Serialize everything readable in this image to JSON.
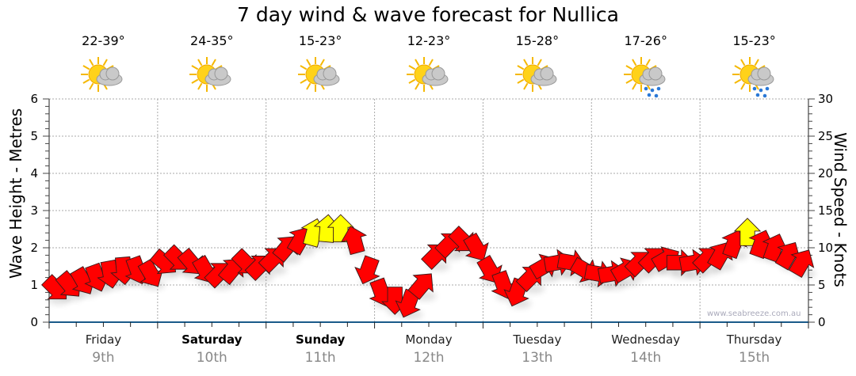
{
  "title": "7 day wind & wave forecast for Nullica",
  "days": [
    {
      "day": "Friday",
      "date": "9th",
      "temp": "22-39°",
      "icon": "sun-cloud-icon",
      "bold": false
    },
    {
      "day": "Saturday",
      "date": "10th",
      "temp": "24-35°",
      "icon": "sun-cloud-icon",
      "bold": true
    },
    {
      "day": "Sunday",
      "date": "11th",
      "temp": "15-23°",
      "icon": "sun-cloud-icon",
      "bold": true
    },
    {
      "day": "Monday",
      "date": "12th",
      "temp": "12-23°",
      "icon": "sun-cloud-icon",
      "bold": false
    },
    {
      "day": "Tuesday",
      "date": "13th",
      "temp": "15-28°",
      "icon": "sun-cloud-icon",
      "bold": false
    },
    {
      "day": "Wednesday",
      "date": "14th",
      "temp": "17-26°",
      "icon": "sun-cloud-rain-icon",
      "bold": false
    },
    {
      "day": "Thursday",
      "date": "15th",
      "temp": "15-23°",
      "icon": "sun-cloud-rain-icon",
      "bold": false
    }
  ],
  "watermark": "www.seabreeze.com.au",
  "chart_data": {
    "type": "scatter",
    "title": "7 day wind & wave forecast for Nullica",
    "ylabel_left": "Wave Height - Metres",
    "ylabel_right": "Wind Speed - Knots",
    "ylim_left": [
      0,
      6
    ],
    "ylim_right": [
      0,
      30
    ],
    "yticks_left": [
      "0",
      "1",
      "2",
      "3",
      "4",
      "5",
      "6"
    ],
    "yticks_right": [
      "0",
      "5",
      "10",
      "15",
      "20",
      "25",
      "30"
    ],
    "grid": true,
    "interval_hours": 3,
    "wind_knots": [
      4.5,
      5,
      5.5,
      6,
      6.5,
      7,
      7,
      6.5,
      8,
      8.5,
      8,
      7,
      6.5,
      7,
      8,
      7.5,
      8.5,
      10,
      11,
      12,
      12.5,
      12.5,
      11,
      7,
      4,
      3,
      2.5,
      5,
      9,
      10.5,
      11,
      10,
      7,
      5,
      4,
      6,
      7.5,
      8,
      8,
      7,
      6.5,
      6.5,
      7,
      8,
      8.5,
      8.5,
      8,
      8,
      8.5,
      9,
      10.5,
      12,
      10.5,
      10,
      9,
      8
    ],
    "arrow_direction_deg": [
      135,
      140,
      150,
      160,
      170,
      175,
      160,
      150,
      130,
      135,
      140,
      150,
      45,
      40,
      135,
      45,
      45,
      40,
      30,
      15,
      5,
      0,
      345,
      200,
      160,
      180,
      200,
      40,
      45,
      45,
      135,
      150,
      150,
      160,
      200,
      45,
      60,
      80,
      100,
      120,
      100,
      80,
      60,
      45,
      45,
      60,
      90,
      80,
      45,
      30,
      20,
      0,
      20,
      20,
      30,
      30
    ],
    "colors": {
      "normal": "#ff0000",
      "strong": "#ffff00"
    },
    "strong_threshold_knots": 12
  }
}
